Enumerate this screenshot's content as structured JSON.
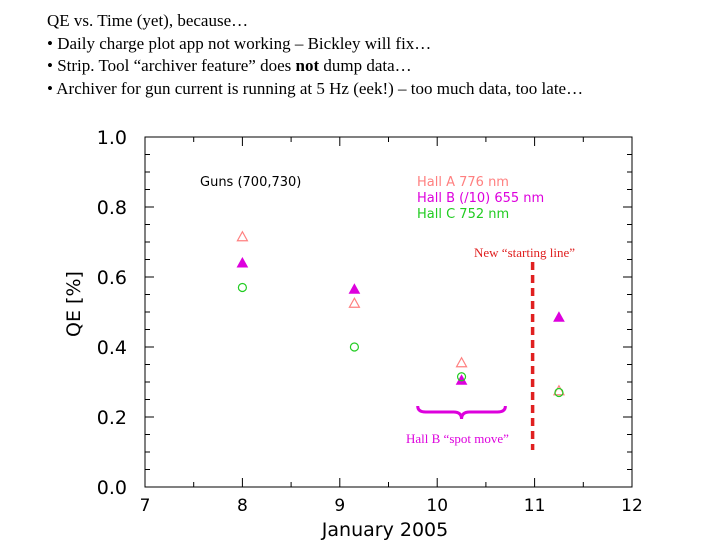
{
  "slide": {
    "lines": [
      {
        "parts": [
          {
            "text": "QE vs. Time (yet), because…",
            "bold": false
          }
        ]
      },
      {
        "parts": [
          {
            "text": "• Daily charge plot app not working – Bickley will fix…",
            "bold": false
          }
        ]
      },
      {
        "parts": [
          {
            "text": "• Strip. Tool “archiver feature” does ",
            "bold": false
          },
          {
            "text": "not",
            "bold": true
          },
          {
            "text": " dump data…",
            "bold": false
          }
        ]
      },
      {
        "parts": [
          {
            "text": "• Archiver for gun current is running at 5 Hz (eek!) – too much data, too late…",
            "bold": false
          }
        ]
      }
    ]
  },
  "chart_data": {
    "type": "scatter",
    "xlabel": "January 2005",
    "ylabel": "QE [%]",
    "xlim": [
      7,
      12
    ],
    "ylim": [
      0.0,
      1.0
    ],
    "xticks": [
      7,
      8,
      9,
      10,
      11,
      12
    ],
    "xtick_labels": [
      "7",
      "8",
      "9",
      "10",
      "11",
      "12"
    ],
    "yticks": [
      0.0,
      0.2,
      0.4,
      0.6,
      0.8,
      1.0
    ],
    "ytick_labels": [
      "0.0",
      "0.2",
      "0.4",
      "0.6",
      "0.8",
      "1.0"
    ],
    "grid": false,
    "legend_position": "top-right",
    "annotation_gun": "Guns (700,730)",
    "series": [
      {
        "name": "Hall A 776 nm",
        "color": "#ff8080",
        "marker": "triangle-open",
        "points": [
          {
            "x": 8.0,
            "y": 0.715
          },
          {
            "x": 9.15,
            "y": 0.525
          },
          {
            "x": 10.25,
            "y": 0.355
          },
          {
            "x": 11.25,
            "y": 0.275
          }
        ]
      },
      {
        "name": "Hall B (/10) 655 nm",
        "color": "#dd00dd",
        "marker": "triangle-filled",
        "points": [
          {
            "x": 8.0,
            "y": 0.64
          },
          {
            "x": 9.15,
            "y": 0.565
          },
          {
            "x": 10.25,
            "y": 0.305
          },
          {
            "x": 11.25,
            "y": 0.485
          }
        ]
      },
      {
        "name": "Hall C 752 nm",
        "color": "#22cc22",
        "marker": "circle-open",
        "points": [
          {
            "x": 8.0,
            "y": 0.57
          },
          {
            "x": 9.15,
            "y": 0.4
          },
          {
            "x": 10.25,
            "y": 0.315
          },
          {
            "x": 11.25,
            "y": 0.27
          }
        ]
      }
    ],
    "annotations": {
      "starting_line": {
        "text": "New “starting line”",
        "x": 11.0,
        "color": "#e02020"
      },
      "spot_move": {
        "text": "Hall B “spot move”",
        "x_from": 9.8,
        "x_to": 10.7,
        "color": "#dd00dd"
      }
    }
  }
}
